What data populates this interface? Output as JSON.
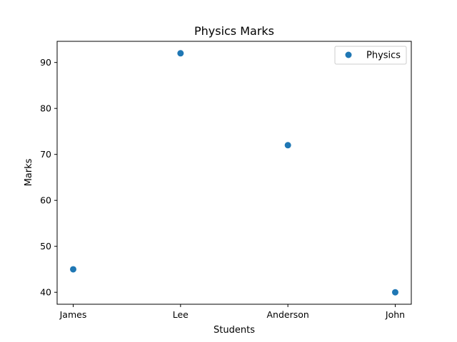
{
  "chart_data": {
    "type": "scatter",
    "title": "Physics Marks",
    "xlabel": "Students",
    "ylabel": "Marks",
    "categories": [
      "James",
      "Lee",
      "Anderson",
      "John"
    ],
    "series": [
      {
        "name": "Physics",
        "values": [
          45,
          92,
          72,
          40
        ],
        "color": "#1f77b4"
      }
    ],
    "yticks": [
      40,
      50,
      60,
      70,
      80,
      90
    ],
    "ylim": [
      37.4,
      94.6
    ],
    "grid": false,
    "legend_position": "top-right"
  }
}
